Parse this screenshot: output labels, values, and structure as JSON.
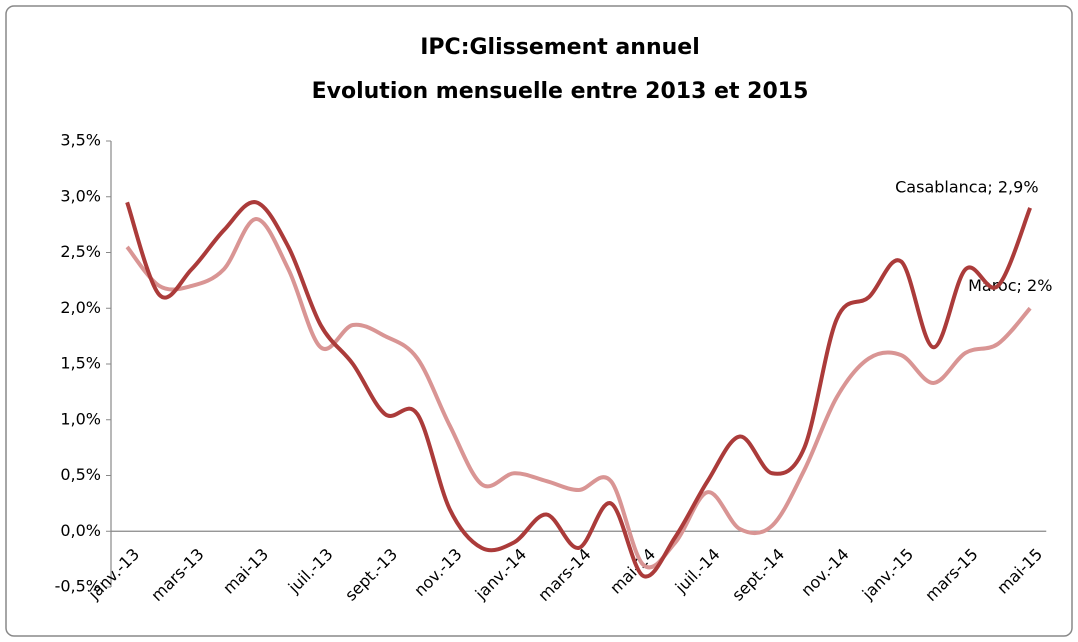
{
  "chart_data": {
    "type": "line",
    "title": "IPC:Glissement annuel",
    "subtitle": "Evolution mensuelle entre 2013 et 2015",
    "categories": [
      "janv.-13",
      null,
      "mars-13",
      null,
      "mai-13",
      null,
      "juil.-13",
      null,
      "sept.-13",
      null,
      "nov.-13",
      null,
      "janv.-14",
      null,
      "mars-14",
      null,
      "mai-14",
      null,
      "juil.-14",
      null,
      "sept.-14",
      null,
      "nov.-14",
      null,
      "janv.-15",
      null,
      "mars-15",
      null,
      "mai-15"
    ],
    "series": [
      {
        "name": "Casablanca",
        "color": "#ab3b3a",
        "values": [
          2.95,
          2.12,
          2.35,
          2.7,
          2.95,
          2.55,
          1.85,
          1.5,
          1.05,
          1.05,
          0.2,
          -0.15,
          -0.1,
          0.15,
          -0.15,
          0.25,
          -0.4,
          -0.05,
          0.45,
          0.85,
          0.52,
          0.75,
          1.9,
          2.1,
          2.42,
          1.65,
          2.35,
          2.2,
          2.9
        ],
        "value_labels": [
          null,
          null,
          null,
          null,
          null,
          null,
          null,
          null,
          null,
          null,
          null,
          null,
          null,
          null,
          null,
          null,
          null,
          null,
          null,
          null,
          null,
          null,
          null,
          null,
          null,
          null,
          null,
          null,
          "Casablanca; 2,9%"
        ]
      },
      {
        "name": "Maroc",
        "color": "#d99594",
        "values": [
          2.55,
          2.2,
          2.2,
          2.35,
          2.8,
          2.35,
          1.65,
          1.85,
          1.75,
          1.55,
          0.95,
          0.42,
          0.52,
          0.45,
          0.37,
          0.45,
          -0.3,
          -0.1,
          0.35,
          0.02,
          0.05,
          0.55,
          1.2,
          1.55,
          1.58,
          1.33,
          1.6,
          1.68,
          2.0
        ],
        "value_labels": [
          null,
          null,
          null,
          null,
          null,
          null,
          null,
          null,
          null,
          null,
          null,
          null,
          null,
          null,
          null,
          null,
          null,
          null,
          null,
          null,
          null,
          null,
          null,
          null,
          null,
          null,
          null,
          null,
          "Maroc; 2%"
        ]
      }
    ],
    "ylim": [
      -0.5,
      3.5
    ],
    "yticks": [
      {
        "value": -0.5,
        "label": "-0,5%"
      },
      {
        "value": 0,
        "label": "0,0%"
      },
      {
        "value": 0.5,
        "label": "0,5%"
      },
      {
        "value": 1,
        "label": "1,0%"
      },
      {
        "value": 1.5,
        "label": "1,5%"
      },
      {
        "value": 2,
        "label": "2,0%"
      },
      {
        "value": 2.5,
        "label": "2,5%"
      },
      {
        "value": 3,
        "label": "3,0%"
      },
      {
        "value": 3.5,
        "label": "3,5%"
      }
    ],
    "grid": false,
    "smooth": true
  }
}
